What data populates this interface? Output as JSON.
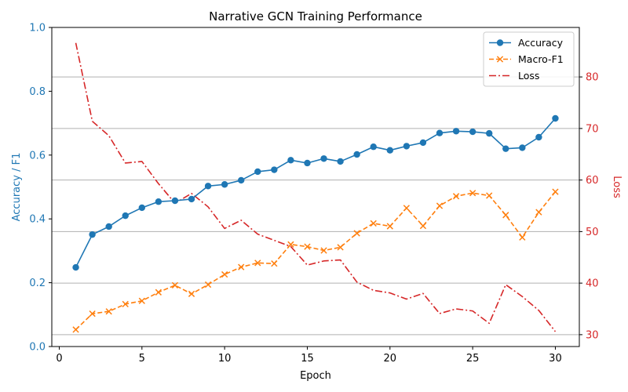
{
  "chart_data": {
    "type": "line",
    "title": "Narrative GCN Training Performance",
    "xlabel": "Epoch",
    "ylabel_left": "Accuracy / F1",
    "ylabel_right": "Loss",
    "xlim": [
      -0.45,
      31.45
    ],
    "ylim_left": [
      0.0,
      1.0
    ],
    "ylim_right": [
      27.7,
      89.6
    ],
    "x_ticks": [
      0,
      5,
      10,
      15,
      20,
      25,
      30
    ],
    "y_ticks_left": [
      0.0,
      0.2,
      0.4,
      0.6,
      0.8,
      1.0
    ],
    "y_ticks_right": [
      30,
      40,
      50,
      60,
      70,
      80
    ],
    "grid": "horizontal lines at right-axis ticks",
    "legend_position": "top-right",
    "colors": {
      "accuracy": "#1f77b4",
      "f1": "#ff7f0e",
      "loss": "#d62728",
      "grid": "#b0b0b0"
    },
    "x": [
      1,
      2,
      3,
      4,
      5,
      6,
      7,
      8,
      9,
      10,
      11,
      12,
      13,
      14,
      15,
      16,
      17,
      18,
      19,
      20,
      21,
      22,
      23,
      24,
      25,
      26,
      27,
      28,
      29,
      30
    ],
    "series": [
      {
        "name": "Accuracy",
        "axis": "left",
        "style": "solid",
        "marker": "circle",
        "values": [
          0.248,
          0.351,
          0.376,
          0.41,
          0.435,
          0.454,
          0.457,
          0.462,
          0.503,
          0.508,
          0.521,
          0.548,
          0.554,
          0.584,
          0.575,
          0.589,
          0.58,
          0.602,
          0.626,
          0.615,
          0.628,
          0.639,
          0.669,
          0.675,
          0.673,
          0.668,
          0.62,
          0.623,
          0.656,
          0.715
        ]
      },
      {
        "name": "Macro-F1",
        "axis": "left",
        "style": "dashed",
        "marker": "x",
        "values": [
          0.053,
          0.103,
          0.11,
          0.133,
          0.143,
          0.17,
          0.192,
          0.165,
          0.194,
          0.226,
          0.249,
          0.262,
          0.26,
          0.32,
          0.313,
          0.301,
          0.311,
          0.355,
          0.386,
          0.377,
          0.434,
          0.378,
          0.441,
          0.471,
          0.481,
          0.473,
          0.412,
          0.342,
          0.421,
          0.485
        ]
      },
      {
        "name": "Loss",
        "axis": "right",
        "style": "dashdot",
        "marker": "none",
        "values": [
          86.6,
          71.4,
          68.6,
          63.3,
          63.6,
          59.3,
          55.5,
          57.4,
          54.8,
          50.6,
          52.2,
          49.5,
          48.3,
          47.1,
          43.5,
          44.3,
          44.5,
          40.2,
          38.6,
          38.1,
          36.9,
          38.0,
          34.1,
          35.0,
          34.6,
          32.2,
          39.7,
          37.4,
          34.7,
          30.6
        ]
      }
    ]
  }
}
